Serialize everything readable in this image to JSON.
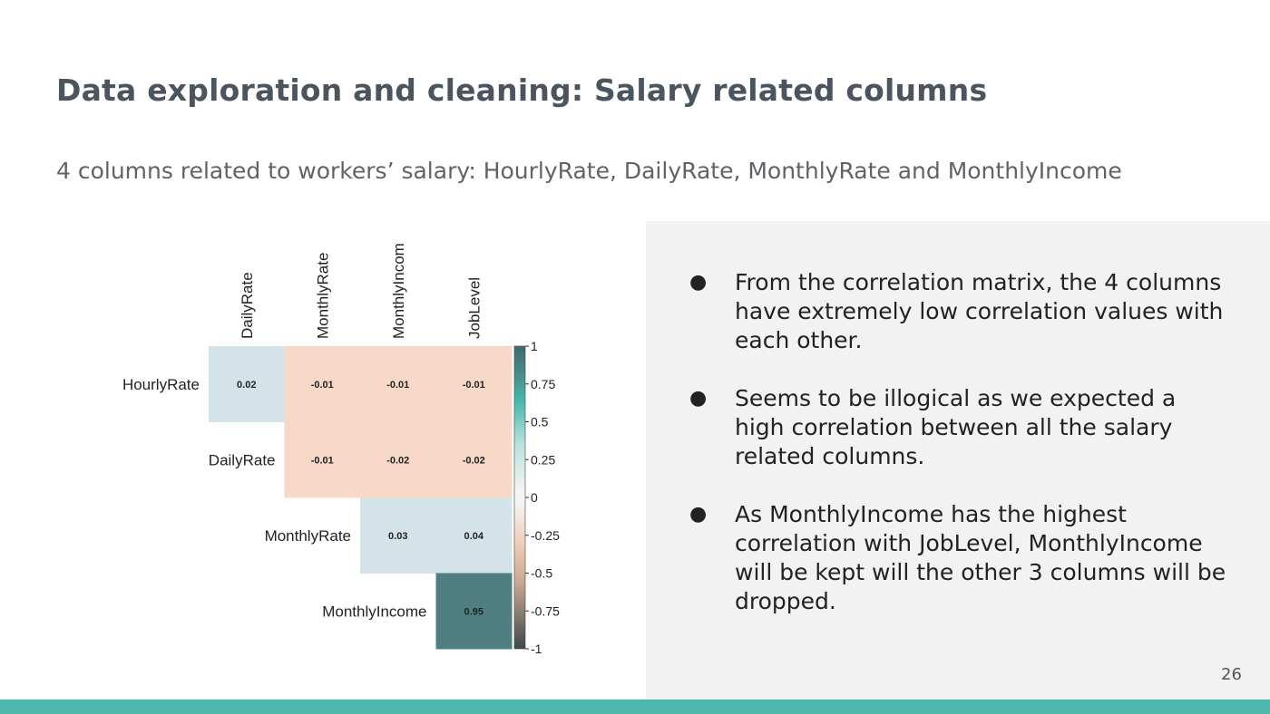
{
  "slide": {
    "title": "Data exploration and cleaning: Salary related columns",
    "subtitle": "4 columns related to workers’ salary: HourlyRate, DailyRate, MonthlyRate and MonthlyIncome",
    "page_number": "26",
    "accent_color": "#4fb8ad"
  },
  "bullets": [
    {
      "text": "From the correlation matrix, the 4 columns have extremely low correlation values with each other."
    },
    {
      "text": "Seems to be illogical as we expected a high correlation between all the salary related columns."
    },
    {
      "text": "As MonthlyIncome has the highest correlation with JobLevel, MonthlyIncome will be kept will the other 3 columns will be dropped."
    }
  ],
  "chart_data": {
    "type": "heatmap",
    "title": "",
    "columns": [
      "DailyRate",
      "MonthlyRate",
      "MonthlyIncom",
      "JobLevel"
    ],
    "rows": [
      "HourlyRate",
      "DailyRate",
      "MonthlyRate",
      "MonthlyIncome"
    ],
    "values": [
      [
        0.02,
        -0.01,
        -0.01,
        -0.01
      ],
      [
        null,
        -0.01,
        -0.02,
        -0.02
      ],
      [
        null,
        null,
        0.03,
        0.04
      ],
      [
        null,
        null,
        null,
        0.95
      ]
    ],
    "value_labels": [
      [
        "0.02",
        "-0.01",
        "-0.01",
        "-0.01"
      ],
      [
        null,
        "-0.01",
        "-0.02",
        "-0.02"
      ],
      [
        null,
        null,
        "0.03",
        "0.04"
      ],
      [
        null,
        null,
        null,
        "0.95"
      ]
    ],
    "mask": "lower-triangle",
    "colorbar": {
      "range": [
        -1,
        1
      ],
      "ticks": [
        1,
        0.75,
        0.5,
        0.25,
        0,
        -0.25,
        -0.5,
        -0.75,
        -1
      ],
      "tick_labels": [
        "1",
        "0.75",
        "0.5",
        "0.25",
        "0",
        "-0.25",
        "-0.5",
        "-0.75",
        "-1"
      ]
    },
    "colors": {
      "positive_low": "#d3e3e8",
      "negative_low": "#f8d9c8",
      "high_positive": "#4f7f83",
      "cbar_top": "#3f6a6c",
      "cbar_teal": "#45b8ab",
      "cbar_mid": "#f4f4f4",
      "cbar_neg": "#f0cdb8",
      "cbar_bottom": "#3d4a4a"
    }
  }
}
